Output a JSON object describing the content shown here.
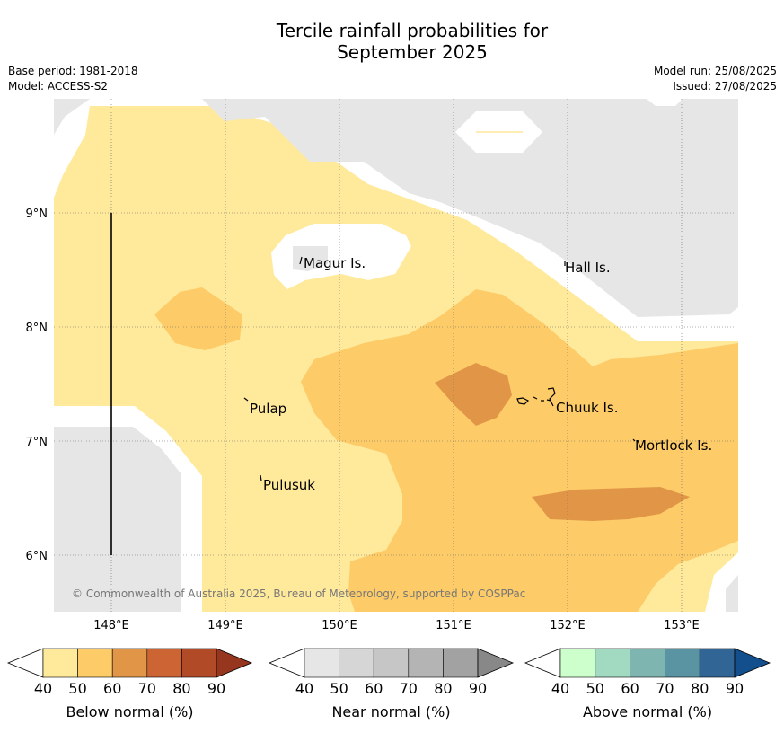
{
  "title_line1": "Tercile rainfall probabilities for",
  "title_line2": "September 2025",
  "meta_left": [
    "Base period: 1981-2018",
    "Model: ACCESS-S2"
  ],
  "meta_right": [
    "Model run: 25/08/2025",
    "Issued: 27/08/2025"
  ],
  "x_ticks": [
    "148°E",
    "149°E",
    "150°E",
    "151°E",
    "152°E",
    "153°E"
  ],
  "y_ticks": [
    "9°N",
    "8°N",
    "7°N",
    "6°N"
  ],
  "places": {
    "magur": "Magur Is.",
    "hall": "Hall Is.",
    "pulap": "Pulap",
    "chuuk": "Chuuk Is.",
    "mortlock": "Mortlock Is.",
    "pulusuk": "Pulusuk"
  },
  "copyright": "© Commonwealth of Australia 2025, Bureau of Meteorology, supported by COSPPac",
  "colorbars": [
    {
      "label": "Below normal (%)",
      "ticks": [
        "40",
        "50",
        "60",
        "70",
        "80",
        "90"
      ],
      "colors": [
        "#ffe99b",
        "#fdcb67",
        "#e19647",
        "#cd6434",
        "#b04a27",
        "#97361f"
      ]
    },
    {
      "label": "Near normal (%)",
      "ticks": [
        "40",
        "50",
        "60",
        "70",
        "80",
        "90"
      ],
      "colors": [
        "#e6e6e6",
        "#d6d6d6",
        "#c6c6c6",
        "#b4b4b4",
        "#a2a2a2",
        "#888888"
      ]
    },
    {
      "label": "Above normal (%)",
      "ticks": [
        "40",
        "50",
        "60",
        "70",
        "80",
        "90"
      ],
      "colors": [
        "#ccffcc",
        "#a2d9c1",
        "#7fb5b0",
        "#5a94a3",
        "#306596",
        "#144f8d"
      ]
    }
  ],
  "map_colors": {
    "below_40": "#ffe99b",
    "below_50": "#fdcb67",
    "below_60": "#e19647",
    "near_40": "#e6e6e6",
    "no_dominant": "#ffffff"
  }
}
